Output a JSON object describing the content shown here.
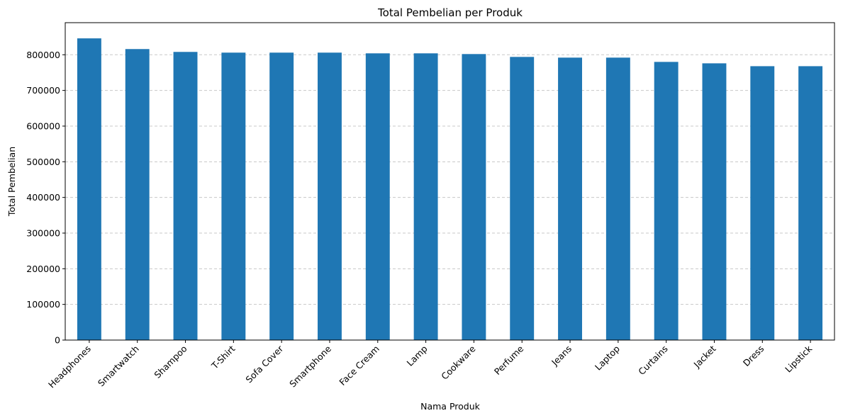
{
  "chart_data": {
    "type": "bar",
    "title": "Total Pembelian per Produk",
    "xlabel": "Nama Produk",
    "ylabel": "Total Pembelian",
    "categories": [
      "Headphones",
      "Smartwatch",
      "Shampoo",
      "T-Shirt",
      "Sofa Cover",
      "Smartphone",
      "Face Cream",
      "Lamp",
      "Cookware",
      "Perfume",
      "Jeans",
      "Laptop",
      "Curtains",
      "Jacket",
      "Dress",
      "Lipstick"
    ],
    "values": [
      846000,
      816000,
      808000,
      806000,
      806000,
      806000,
      804000,
      804000,
      802000,
      794000,
      792000,
      792000,
      780000,
      776000,
      768000,
      768000
    ],
    "ylim": [
      0,
      890000
    ],
    "yticks": [
      0,
      100000,
      200000,
      300000,
      400000,
      500000,
      600000,
      700000,
      800000
    ],
    "ytick_labels": [
      "0",
      "100000",
      "200000",
      "300000",
      "400000",
      "500000",
      "600000",
      "700000",
      "800000"
    ],
    "grid": "y-dashed",
    "bar_color": "#1f77b4",
    "grid_color": "#c8c8c8"
  }
}
